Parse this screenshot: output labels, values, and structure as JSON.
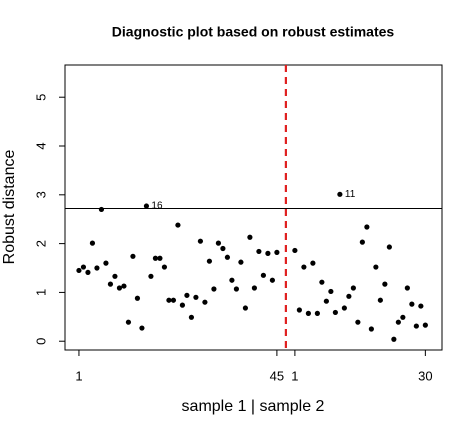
{
  "chart_data": {
    "type": "scatter",
    "title": "Diagnostic plot based on robust estimates",
    "xlabel": "sample 1 | sample 2",
    "ylabel": "Robust distance",
    "x": [
      1,
      2,
      3,
      4,
      5,
      6,
      7,
      8,
      9,
      10,
      11,
      12,
      13,
      14,
      15,
      16,
      17,
      18,
      19,
      20,
      21,
      22,
      23,
      24,
      25,
      26,
      27,
      28,
      29,
      30,
      31,
      32,
      33,
      34,
      35,
      36,
      37,
      38,
      39,
      40,
      41,
      42,
      43,
      44,
      45,
      49,
      50,
      51,
      52,
      53,
      54,
      55,
      56,
      57,
      58,
      59,
      60,
      61,
      62,
      63,
      64,
      65,
      66,
      67,
      68,
      69,
      70,
      71,
      72,
      73,
      74,
      75,
      76,
      77,
      78
    ],
    "values": [
      1.45,
      1.52,
      1.41,
      2.01,
      1.5,
      2.7,
      1.6,
      1.17,
      1.33,
      1.09,
      1.13,
      0.39,
      1.74,
      0.88,
      0.27,
      2.77,
      1.33,
      1.7,
      1.7,
      1.52,
      0.84,
      0.84,
      2.38,
      0.74,
      0.94,
      0.49,
      0.9,
      2.05,
      0.8,
      1.64,
      1.07,
      2.01,
      1.9,
      1.72,
      1.25,
      1.07,
      1.62,
      0.68,
      2.13,
      1.09,
      1.84,
      1.35,
      1.8,
      1.25,
      1.82,
      1.86,
      0.64,
      1.52,
      0.57,
      1.6,
      0.57,
      1.21,
      0.82,
      1.02,
      0.59,
      3.01,
      0.68,
      0.92,
      1.09,
      0.39,
      2.03,
      2.34,
      0.25,
      1.52,
      0.84,
      1.17,
      1.93,
      0.04,
      0.39,
      0.49,
      1.09,
      0.76,
      0.31,
      0.72,
      0.33
    ],
    "point_labels": [
      null,
      null,
      null,
      null,
      null,
      null,
      null,
      null,
      null,
      null,
      null,
      null,
      null,
      null,
      null,
      "16",
      null,
      null,
      null,
      null,
      null,
      null,
      null,
      null,
      null,
      null,
      null,
      null,
      null,
      null,
      null,
      null,
      null,
      null,
      null,
      null,
      null,
      null,
      null,
      null,
      null,
      null,
      null,
      null,
      null,
      null,
      null,
      null,
      null,
      null,
      null,
      null,
      null,
      null,
      null,
      "11",
      null,
      null,
      null,
      null,
      null,
      null,
      null,
      null,
      null,
      null,
      null,
      null,
      null,
      null,
      null,
      null,
      null,
      null,
      null
    ],
    "color": "#000000",
    "xlim": [
      -2.1,
      81.7
    ],
    "ylim": [
      -0.18,
      5.66
    ],
    "xticks": [
      1,
      45,
      {
        "value": 49,
        "label": "1"
      },
      {
        "value": 78,
        "label": "30"
      }
    ],
    "yticks": [
      0,
      1,
      2,
      3,
      4,
      5
    ],
    "hline": 2.72,
    "vline": 47,
    "vline_color": "#e02020"
  }
}
